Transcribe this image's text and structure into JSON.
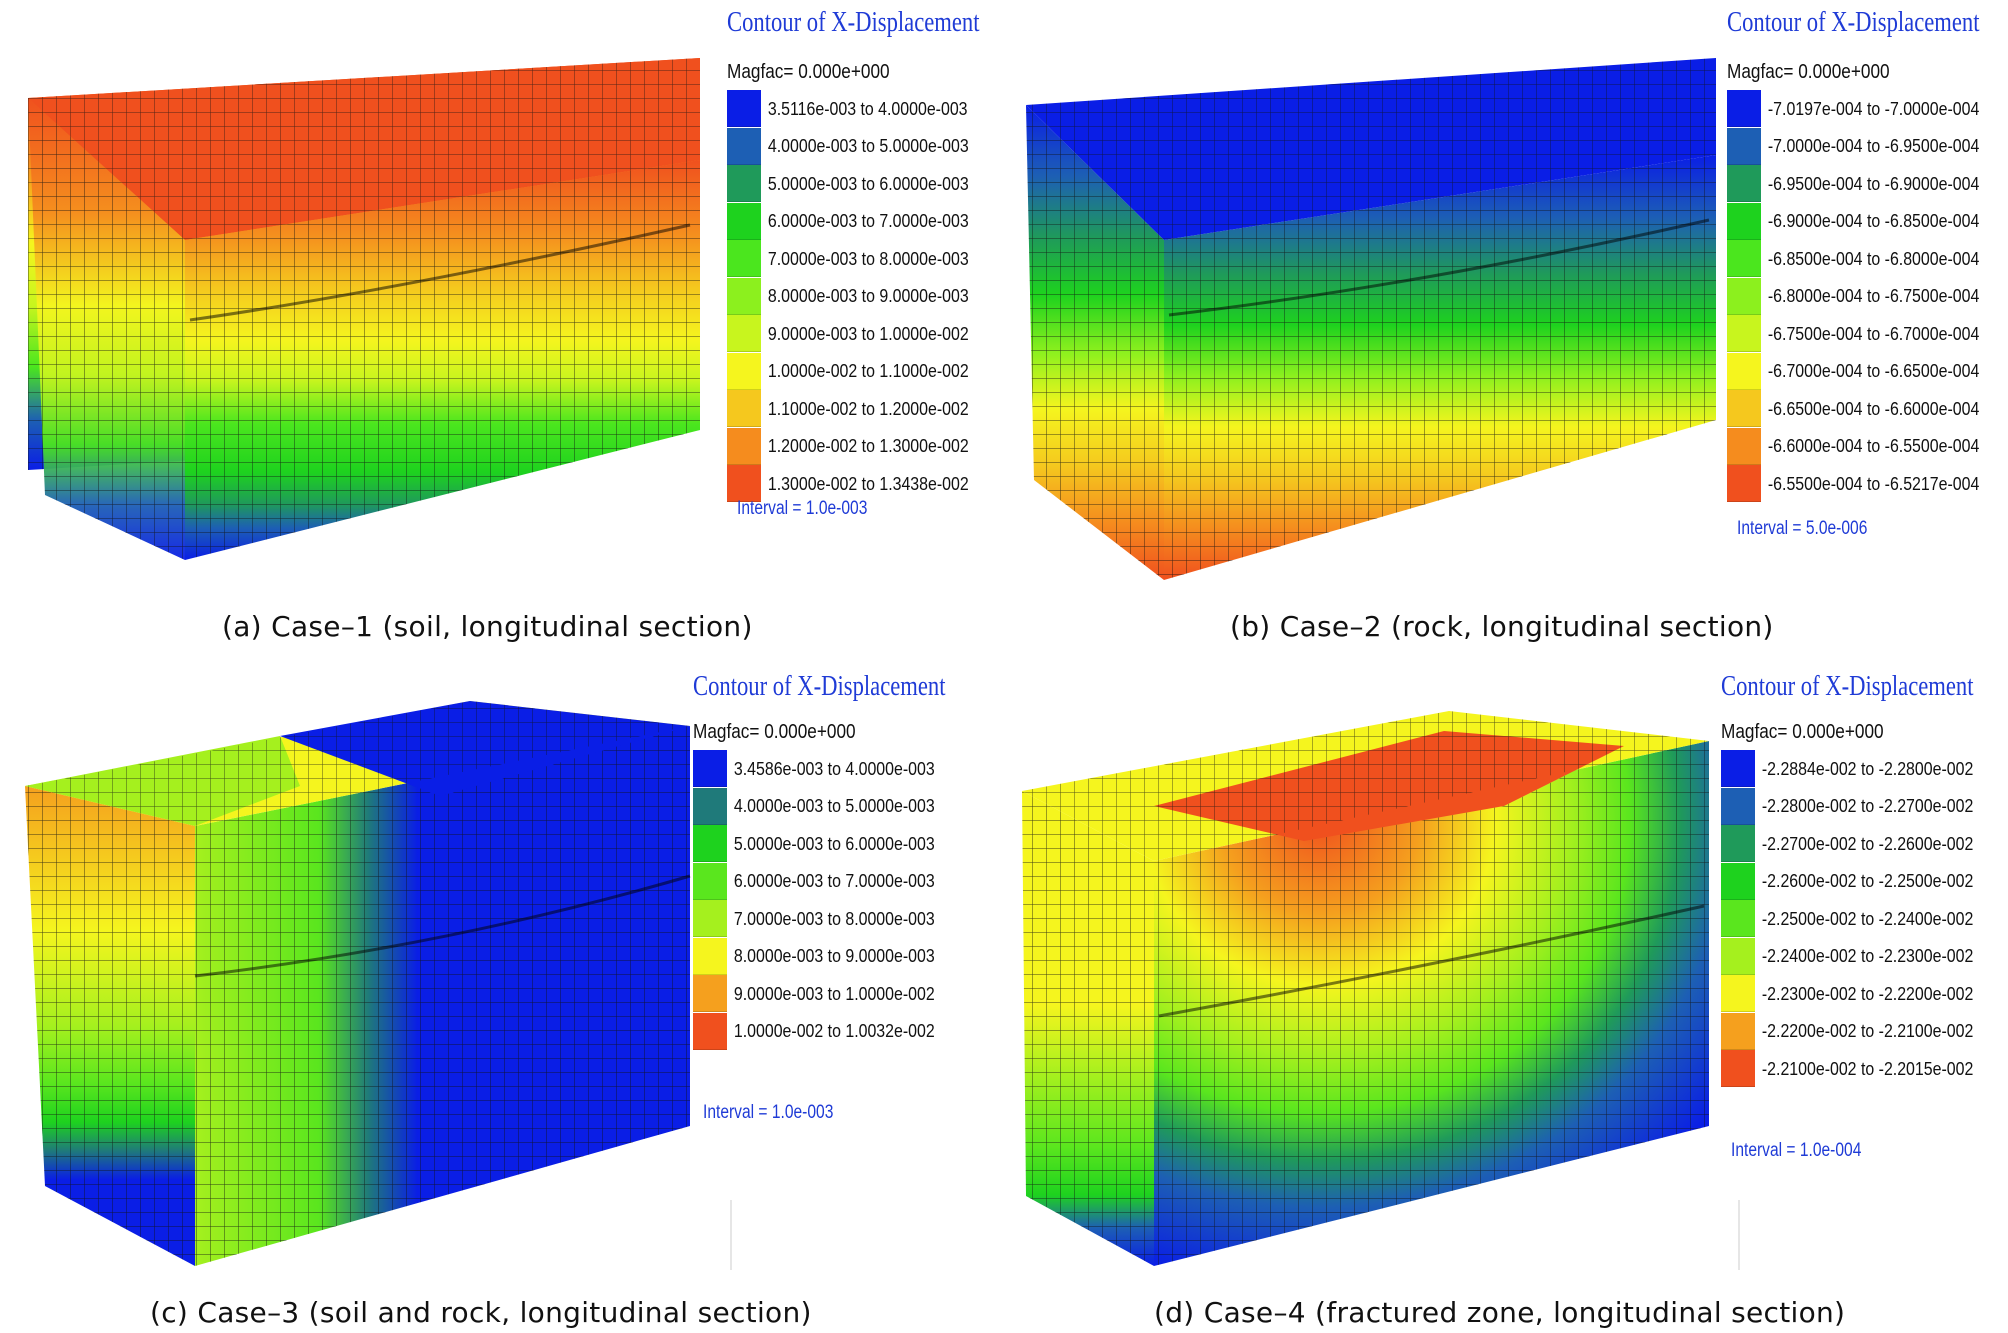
{
  "panels": [
    {
      "id": "a",
      "caption": "(a) Case–1 (soil, longitudinal section)",
      "legend": {
        "title": "Contour of X-Displacement",
        "magfac": "Magfac= 0.000e+000",
        "interval": "Interval = 1.0e-003",
        "ranges": [
          {
            "label": "3.5116e-003 to 4.0000e-003",
            "color": "#0a1ee6"
          },
          {
            "label": "4.0000e-003 to 5.0000e-003",
            "color": "#1d5fb4"
          },
          {
            "label": "5.0000e-003 to 6.0000e-003",
            "color": "#1f9a5a"
          },
          {
            "label": "6.0000e-003 to 7.0000e-003",
            "color": "#1ed21e"
          },
          {
            "label": "7.0000e-003 to 8.0000e-003",
            "color": "#4be61e"
          },
          {
            "label": "8.0000e-003 to 9.0000e-003",
            "color": "#8cf01e"
          },
          {
            "label": "9.0000e-003 to 1.0000e-002",
            "color": "#c8f51e"
          },
          {
            "label": "1.0000e-002 to 1.1000e-002",
            "color": "#f5f51e"
          },
          {
            "label": "1.1000e-002 to 1.2000e-002",
            "color": "#f5c81e"
          },
          {
            "label": "1.2000e-002 to 1.3000e-002",
            "color": "#f58c1e"
          },
          {
            "label": "1.3000e-002 to 1.3438e-002",
            "color": "#f0501e"
          }
        ]
      }
    },
    {
      "id": "b",
      "caption": "(b) Case–2 (rock, longitudinal section)",
      "legend": {
        "title": "Contour of X-Displacement",
        "magfac": "Magfac= 0.000e+000",
        "interval": "Interval = 5.0e-006",
        "ranges": [
          {
            "label": "-7.0197e-004 to -7.0000e-004",
            "color": "#0a1ee6"
          },
          {
            "label": "-7.0000e-004 to -6.9500e-004",
            "color": "#1d5fb4"
          },
          {
            "label": "-6.9500e-004 to -6.9000e-004",
            "color": "#1f9a5a"
          },
          {
            "label": "-6.9000e-004 to -6.8500e-004",
            "color": "#1ed21e"
          },
          {
            "label": "-6.8500e-004 to -6.8000e-004",
            "color": "#4be61e"
          },
          {
            "label": "-6.8000e-004 to -6.7500e-004",
            "color": "#8cf01e"
          },
          {
            "label": "-6.7500e-004 to -6.7000e-004",
            "color": "#c8f51e"
          },
          {
            "label": "-6.7000e-004 to -6.6500e-004",
            "color": "#f5f51e"
          },
          {
            "label": "-6.6500e-004 to -6.6000e-004",
            "color": "#f5c81e"
          },
          {
            "label": "-6.6000e-004 to -6.5500e-004",
            "color": "#f58c1e"
          },
          {
            "label": "-6.5500e-004 to -6.5217e-004",
            "color": "#f0501e"
          }
        ]
      }
    },
    {
      "id": "c",
      "caption": "(c) Case–3 (soil and rock, longitudinal section)",
      "legend": {
        "title": "Contour of X-Displacement",
        "magfac": "Magfac= 0.000e+000",
        "interval": "Interval = 1.0e-003",
        "ranges": [
          {
            "label": "3.4586e-003 to 4.0000e-003",
            "color": "#0a1ee6"
          },
          {
            "label": "4.0000e-003 to 5.0000e-003",
            "color": "#1f7a7a"
          },
          {
            "label": "5.0000e-003 to 6.0000e-003",
            "color": "#1ed21e"
          },
          {
            "label": "6.0000e-003 to 7.0000e-003",
            "color": "#5ae61e"
          },
          {
            "label": "7.0000e-003 to 8.0000e-003",
            "color": "#a5f01e"
          },
          {
            "label": "8.0000e-003 to 9.0000e-003",
            "color": "#f5f51e"
          },
          {
            "label": "9.0000e-003 to 1.0000e-002",
            "color": "#f5a01e"
          },
          {
            "label": "1.0000e-002 to 1.0032e-002",
            "color": "#f0501e"
          }
        ]
      }
    },
    {
      "id": "d",
      "caption": "(d) Case–4 (fractured zone, longitudinal section)",
      "legend": {
        "title": "Contour of X-Displacement",
        "magfac": "Magfac= 0.000e+000",
        "interval": "Interval = 1.0e-004",
        "ranges": [
          {
            "label": "-2.2884e-002 to -2.2800e-002",
            "color": "#0a1ee6"
          },
          {
            "label": "-2.2800e-002 to -2.2700e-002",
            "color": "#1d5fb4"
          },
          {
            "label": "-2.2700e-002 to -2.2600e-002",
            "color": "#1f9a5a"
          },
          {
            "label": "-2.2600e-002 to -2.2500e-002",
            "color": "#1ed21e"
          },
          {
            "label": "-2.2500e-002 to -2.2400e-002",
            "color": "#5ae61e"
          },
          {
            "label": "-2.2400e-002 to -2.2300e-002",
            "color": "#a5f01e"
          },
          {
            "label": "-2.2300e-002 to -2.2200e-002",
            "color": "#f5f51e"
          },
          {
            "label": "-2.2200e-002 to -2.2100e-002",
            "color": "#f5a01e"
          },
          {
            "label": "-2.2100e-002 to -2.2015e-002",
            "color": "#f0501e"
          }
        ]
      }
    }
  ]
}
